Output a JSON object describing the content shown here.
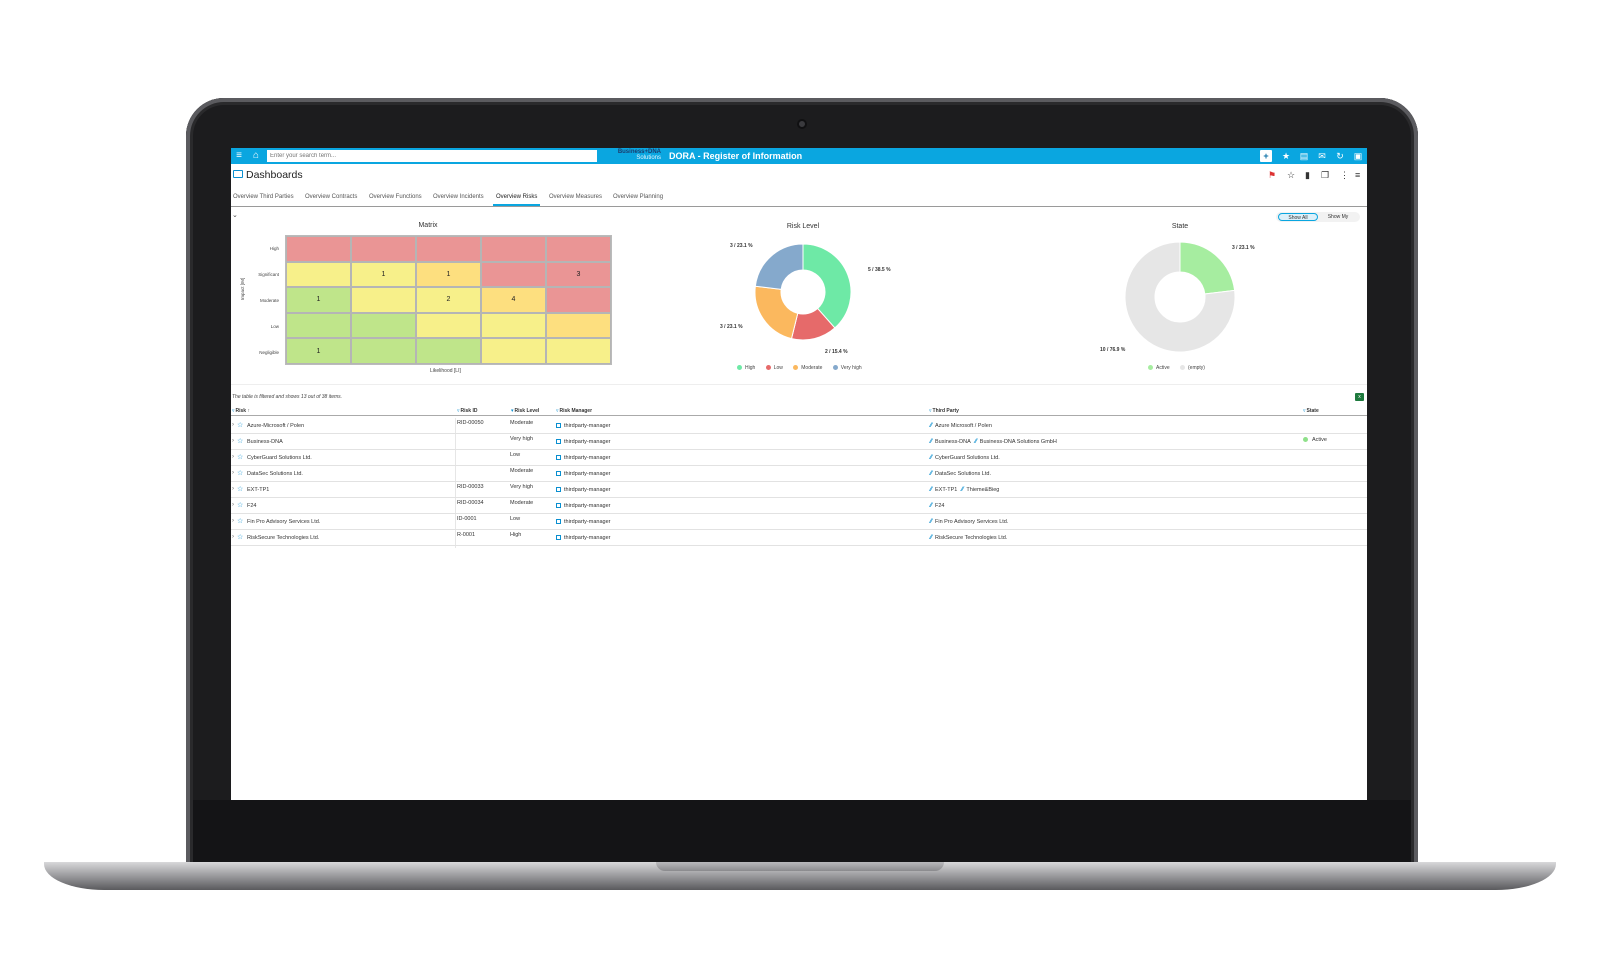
{
  "app": {
    "search_placeholder": "Enter your search term...",
    "logo_line1": "Business+DNA",
    "logo_line2": "Solutions",
    "title": "DORA - Register of Information"
  },
  "page": {
    "title": "Dashboards"
  },
  "tabs": [
    {
      "label": "Overview Third Parties"
    },
    {
      "label": "Overview Contracts"
    },
    {
      "label": "Overview Functions"
    },
    {
      "label": "Overview Incidents"
    },
    {
      "label": "Overview Risks",
      "active": true
    },
    {
      "label": "Overview Measures"
    },
    {
      "label": "Overview Planning"
    }
  ],
  "toggle": {
    "show_all": "Show All",
    "show_my": "Show My"
  },
  "matrix": {
    "title": "Matrix",
    "row_labels": [
      "High",
      "Significant",
      "Moderate",
      "Low",
      "Negligible"
    ],
    "y_label": "Impact [IM]",
    "x_label": "Likelihood [LI]",
    "cells": [
      [
        "",
        "",
        "",
        "",
        ""
      ],
      [
        "",
        "1",
        "1",
        "",
        "3"
      ],
      [
        "1",
        "",
        "2",
        "4",
        ""
      ],
      [
        "",
        "",
        "",
        "",
        ""
      ],
      [
        "1",
        "",
        "",
        "",
        ""
      ]
    ],
    "colors": [
      [
        "#ea9595",
        "#ea9595",
        "#ea9595",
        "#ea9595",
        "#ea9595"
      ],
      [
        "#f7f08a",
        "#f7f08a",
        "#fddf7f",
        "#ea9595",
        "#ea9595"
      ],
      [
        "#bfe58a",
        "#f7f08a",
        "#f7f08a",
        "#fddf7f",
        "#ea9595"
      ],
      [
        "#bfe58a",
        "#bfe58a",
        "#f7f08a",
        "#f7f08a",
        "#fddf7f"
      ],
      [
        "#bfe58a",
        "#bfe58a",
        "#bfe58a",
        "#f7f08a",
        "#f7f08a"
      ]
    ]
  },
  "chart_data": [
    {
      "type": "pie",
      "title": "Risk Level",
      "donut": true,
      "slices": [
        {
          "label": "High",
          "value": 5,
          "pct_text": "5 / 38.5 %",
          "color": "#6ee9a6"
        },
        {
          "label": "Low",
          "value": 2,
          "pct_text": "2 / 15.4 %",
          "color": "#e66a6a"
        },
        {
          "label": "Moderate",
          "value": 3,
          "pct_text": "3 / 23.1 %",
          "color": "#fbb85e"
        },
        {
          "label": "Very high",
          "value": 3,
          "pct_text": "3 / 23.1 %",
          "color": "#85a9cc"
        }
      ],
      "legend": [
        "High",
        "Low",
        "Moderate",
        "Very high"
      ],
      "legend_position": "bottom"
    },
    {
      "type": "pie",
      "title": "State",
      "donut": true,
      "slices": [
        {
          "label": "Active",
          "value": 3,
          "pct_text": "3 / 23.1 %",
          "color": "#a6eda0"
        },
        {
          "label": "(empty)",
          "value": 10,
          "pct_text": "10 / 76.9 %",
          "color": "#e6e6e6"
        }
      ],
      "legend": [
        "Active",
        "(empty)"
      ],
      "legend_position": "bottom"
    }
  ],
  "table": {
    "filter_info": "The table is filtered and shows 13 out of 38 items.",
    "columns": [
      "Risk",
      "Risk ID",
      "Risk Level",
      "Risk Manager",
      "Third Party",
      "State"
    ],
    "rows": [
      {
        "risk": "Azure-Microsoft / Polen",
        "id": "RID-00050",
        "level": "Moderate",
        "manager": "thirdparty-manager",
        "tp1": "Azure Microsoft / Polen",
        "tp2": "",
        "state": ""
      },
      {
        "risk": "Business-DNA",
        "id": "",
        "level": "Very high",
        "manager": "thirdparty-manager",
        "tp1": "Business-DNA",
        "tp2": "Business-DNA Solutions GmbH",
        "state": "Active"
      },
      {
        "risk": "CyberGuard Solutions Ltd.",
        "id": "",
        "level": "Low",
        "manager": "thirdparty-manager",
        "tp1": "CyberGuard Solutions Ltd.",
        "tp2": "",
        "state": ""
      },
      {
        "risk": "DataSec Solutions Ltd.",
        "id": "",
        "level": "Moderate",
        "manager": "thirdparty-manager",
        "tp1": "DataSec Solutions Ltd.",
        "tp2": "",
        "state": ""
      },
      {
        "risk": "EXT-TP1",
        "id": "RID-00033",
        "level": "Very high",
        "manager": "thirdparty-manager",
        "tp1": "EXT-TP1",
        "tp2": "Thieme&Bieg",
        "state": ""
      },
      {
        "risk": "F24",
        "id": "RID-00034",
        "level": "Moderate",
        "manager": "thirdparty-manager",
        "tp1": "F24",
        "tp2": "",
        "state": ""
      },
      {
        "risk": "Fin Pro Advisory Services Ltd.",
        "id": "ID-0001",
        "level": "Low",
        "manager": "thirdparty-manager",
        "tp1": "Fin Pro Advisory Services Ltd.",
        "tp2": "",
        "state": ""
      },
      {
        "risk": "RiskSecure Technologies Ltd.",
        "id": "R-0001",
        "level": "High",
        "manager": "thirdparty-manager",
        "tp1": "RiskSecure Technologies Ltd.",
        "tp2": "",
        "state": ""
      }
    ]
  },
  "icons": [
    "menu-icon",
    "home-icon",
    "plus-icon",
    "star-icon",
    "print-icon",
    "mail-icon",
    "refresh-icon",
    "user-icon",
    "excel-icon"
  ]
}
